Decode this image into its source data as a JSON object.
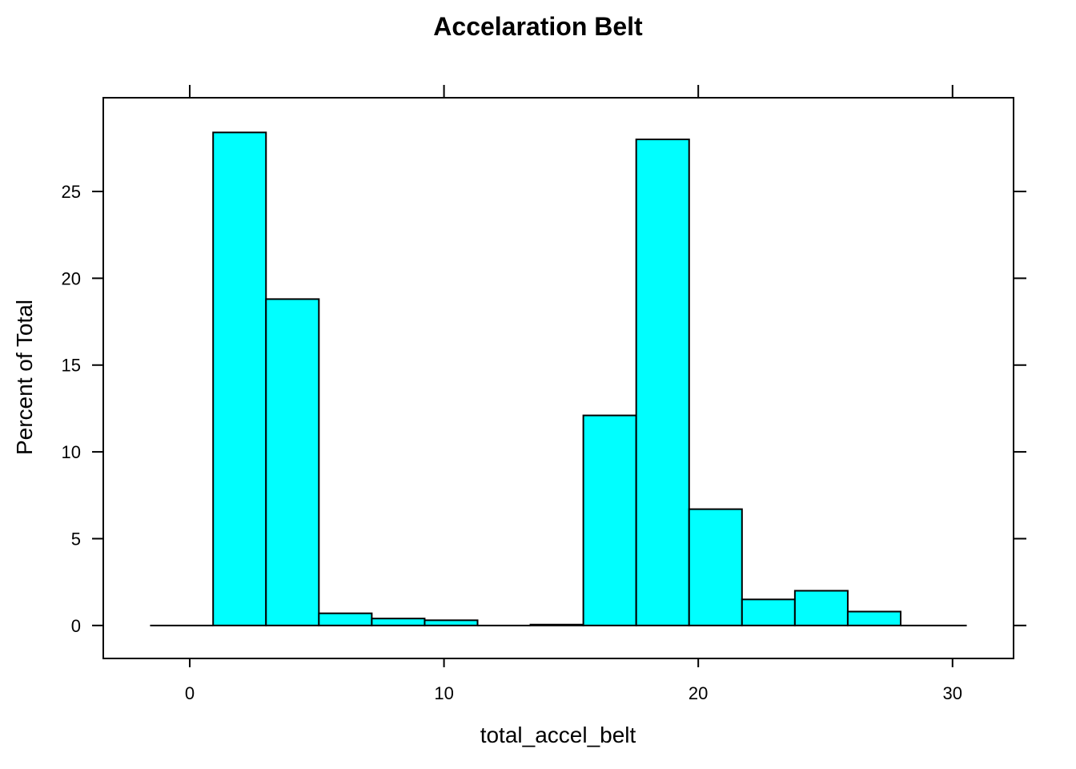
{
  "chart_data": {
    "type": "bar",
    "title": "Accelaration Belt",
    "xlabel": "total_accel_belt",
    "ylabel": "Percent of Total",
    "xlim": [
      -3.4,
      32.4
    ],
    "ylim": [
      -1.9,
      30.4
    ],
    "xticks": [
      0,
      10,
      20,
      30
    ],
    "yticks": [
      0,
      5,
      10,
      15,
      20,
      25
    ],
    "bar_color": "#00FFFF",
    "grid": false,
    "bins": [
      {
        "x0": -1.56,
        "x1": 0.92,
        "value": 0.0
      },
      {
        "x0": 0.92,
        "x1": 3.0,
        "value": 28.4
      },
      {
        "x0": 3.0,
        "x1": 5.08,
        "value": 18.8
      },
      {
        "x0": 5.08,
        "x1": 7.16,
        "value": 0.7
      },
      {
        "x0": 7.16,
        "x1": 9.24,
        "value": 0.4
      },
      {
        "x0": 9.24,
        "x1": 11.32,
        "value": 0.3
      },
      {
        "x0": 11.32,
        "x1": 13.4,
        "value": 0.0
      },
      {
        "x0": 13.4,
        "x1": 15.48,
        "value": 0.05
      },
      {
        "x0": 15.48,
        "x1": 17.56,
        "value": 12.1
      },
      {
        "x0": 17.56,
        "x1": 19.64,
        "value": 28.0
      },
      {
        "x0": 19.64,
        "x1": 21.72,
        "value": 6.7
      },
      {
        "x0": 21.72,
        "x1": 23.8,
        "value": 1.5
      },
      {
        "x0": 23.8,
        "x1": 25.88,
        "value": 2.0
      },
      {
        "x0": 25.88,
        "x1": 27.96,
        "value": 0.8
      },
      {
        "x0": 27.96,
        "x1": 30.56,
        "value": 0.0
      }
    ]
  }
}
